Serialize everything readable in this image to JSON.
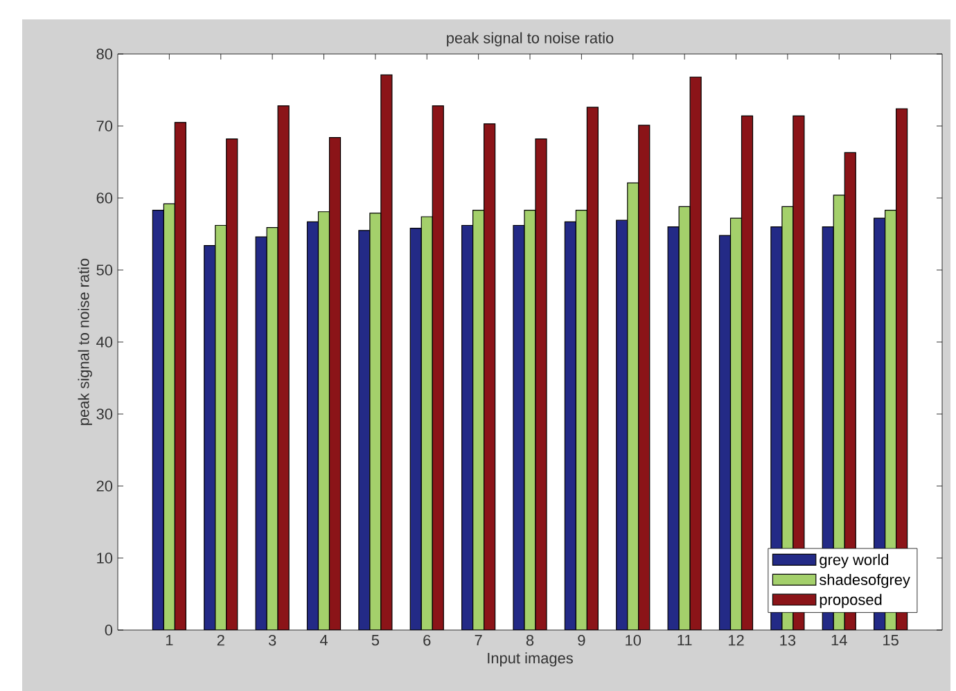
{
  "chart_data": {
    "type": "bar",
    "title": "peak signal to noise ratio",
    "xlabel": "Input images",
    "ylabel": "peak signal to noise ratio",
    "categories": [
      "1",
      "2",
      "3",
      "4",
      "5",
      "6",
      "7",
      "8",
      "9",
      "10",
      "11",
      "12",
      "13",
      "14",
      "15"
    ],
    "series": [
      {
        "name": "grey world",
        "color": "#232a86",
        "values": [
          58.3,
          53.4,
          54.6,
          56.7,
          55.5,
          55.8,
          56.2,
          56.2,
          56.7,
          56.9,
          56.0,
          54.8,
          56.0,
          56.0,
          57.2
        ]
      },
      {
        "name": "shadesofgrey",
        "color": "#a4d06b",
        "values": [
          59.2,
          56.2,
          55.9,
          58.1,
          57.9,
          57.4,
          58.3,
          58.3,
          58.3,
          62.1,
          58.8,
          57.2,
          58.8,
          60.4,
          58.3
        ]
      },
      {
        "name": "proposed",
        "color": "#8b1418",
        "values": [
          70.5,
          68.2,
          72.8,
          68.4,
          77.1,
          72.8,
          70.3,
          68.2,
          72.6,
          70.1,
          76.8,
          71.4,
          71.4,
          66.3,
          72.4
        ]
      }
    ],
    "ylim": [
      0,
      80
    ],
    "yticks": [
      0,
      10,
      20,
      30,
      40,
      50,
      60,
      70,
      80
    ],
    "grid": false,
    "legend": "bottom right"
  }
}
